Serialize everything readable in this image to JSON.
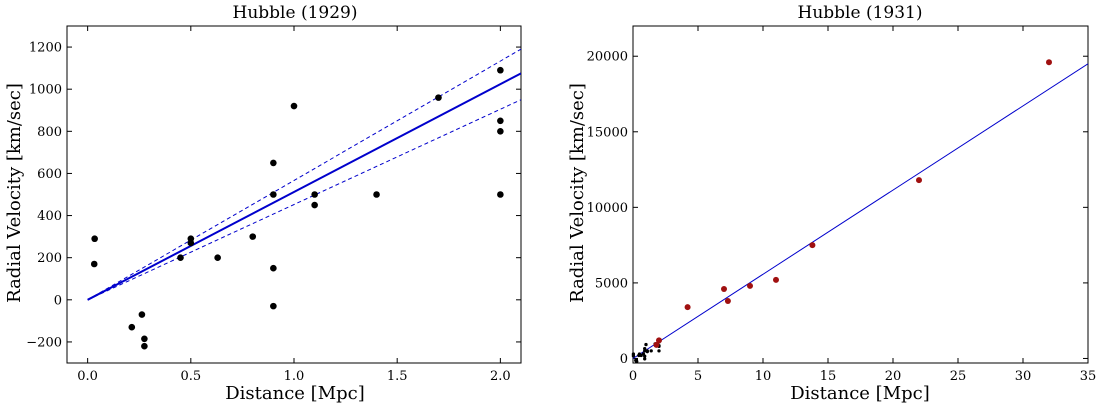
{
  "chart_data": [
    {
      "type": "scatter",
      "title": "Hubble (1929)",
      "xlabel": "Distance [Mpc]",
      "ylabel": "Radial Velocity [km/sec]",
      "xlim": [
        -0.1,
        2.1
      ],
      "ylim": [
        -300,
        1300
      ],
      "xticks": [
        0.0,
        0.5,
        1.0,
        1.5,
        2.0
      ],
      "xtick_labels": [
        "0.0",
        "0.5",
        "1.0",
        "1.5",
        "2.0"
      ],
      "yticks": [
        -200,
        0,
        200,
        400,
        600,
        800,
        1000,
        1200
      ],
      "ytick_labels": [
        "−200",
        "0",
        "200",
        "400",
        "600",
        "800",
        "1000",
        "1200"
      ],
      "grid": false,
      "point_color": "#000000",
      "line_color": "#0000cc",
      "points": [
        [
          0.032,
          170
        ],
        [
          0.034,
          290
        ],
        [
          0.214,
          -130
        ],
        [
          0.263,
          -70
        ],
        [
          0.275,
          -185
        ],
        [
          0.275,
          -220
        ],
        [
          0.45,
          200
        ],
        [
          0.5,
          290
        ],
        [
          0.5,
          270
        ],
        [
          0.63,
          200
        ],
        [
          0.8,
          300
        ],
        [
          0.9,
          -30
        ],
        [
          0.9,
          650
        ],
        [
          0.9,
          150
        ],
        [
          0.9,
          500
        ],
        [
          1.0,
          920
        ],
        [
          1.1,
          450
        ],
        [
          1.1,
          500
        ],
        [
          1.4,
          500
        ],
        [
          1.7,
          960
        ],
        [
          2.0,
          500
        ],
        [
          2.0,
          850
        ],
        [
          2.0,
          800
        ],
        [
          2.0,
          1090
        ]
      ],
      "fit_line": {
        "x": [
          0.0,
          2.1
        ],
        "y": [
          0,
          1075
        ]
      },
      "band_upper": {
        "x": [
          0.0,
          2.1
        ],
        "y": [
          0,
          1190
        ]
      },
      "band_lower": {
        "x": [
          0.0,
          2.1
        ],
        "y": [
          0,
          950
        ]
      }
    },
    {
      "type": "scatter",
      "title": "Hubble (1931)",
      "xlabel": "Distance [Mpc]",
      "ylabel": "Radial Velocity [km/sec]",
      "xlim": [
        0,
        35
      ],
      "ylim": [
        -300,
        22000
      ],
      "xticks": [
        0,
        5,
        10,
        15,
        20,
        25,
        30,
        35
      ],
      "xtick_labels": [
        "0",
        "5",
        "10",
        "15",
        "20",
        "25",
        "30",
        "35"
      ],
      "yticks": [
        0,
        5000,
        10000,
        15000,
        20000
      ],
      "ytick_labels": [
        "0",
        "5000",
        "10000",
        "15000",
        "20000"
      ],
      "grid": false,
      "line_color": "#0000cc",
      "series": [
        {
          "color": "#000000",
          "points": [
            [
              0.03,
              170
            ],
            [
              0.03,
              290
            ],
            [
              0.21,
              -130
            ],
            [
              0.26,
              -70
            ],
            [
              0.28,
              -185
            ],
            [
              0.28,
              -220
            ],
            [
              0.45,
              200
            ],
            [
              0.5,
              290
            ],
            [
              0.5,
              270
            ],
            [
              0.63,
              200
            ],
            [
              0.8,
              300
            ],
            [
              0.9,
              -30
            ],
            [
              0.9,
              650
            ],
            [
              0.9,
              150
            ],
            [
              0.9,
              500
            ],
            [
              1.0,
              920
            ],
            [
              1.1,
              450
            ],
            [
              1.1,
              500
            ],
            [
              1.4,
              500
            ],
            [
              1.7,
              960
            ],
            [
              2.0,
              500
            ],
            [
              2.0,
              850
            ],
            [
              2.0,
              800
            ],
            [
              2.0,
              1090
            ]
          ]
        },
        {
          "color": "#a01010",
          "points": [
            [
              1.8,
              900
            ],
            [
              2.0,
              1200
            ],
            [
              4.2,
              3400
            ],
            [
              7.0,
              4600
            ],
            [
              7.3,
              3800
            ],
            [
              9.0,
              4800
            ],
            [
              11.0,
              5200
            ],
            [
              13.8,
              7500
            ],
            [
              22.0,
              11800
            ],
            [
              32.0,
              19600
            ]
          ]
        }
      ],
      "fit_line": {
        "x": [
          0,
          35
        ],
        "y": [
          0,
          19500
        ]
      }
    }
  ]
}
